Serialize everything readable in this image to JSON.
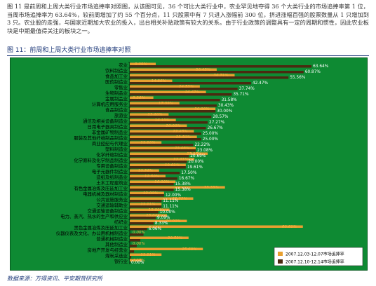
{
  "intro_text": "图 11 是前周和上周大类行业市场追捧率对照图，从该图可见，36 个可比大类行业中，农业罕见地夺得 36 个大类行业的市场追捧率第 1 位，当周市场追捧率为 63.64%，较前周增加了约 55 个百分点，11 只股票中有 7 只进入涨幅前 300 位，挤进涨幅百强的股票数量从 1 只增加到 3 只。农业股的走强，与国家近期加大农业的投入，出台相关补贴政策有较大的关系。由于行业政策的调整具有一定的周期和惯性，因此农业板块是中期最值得关注的板块之一。",
  "figure_caption": "图 11：前周和上周大类行业市场追捧率对照",
  "source_text": "数据来源：万得资讯、平安期货研究所",
  "colors": {
    "background": "#0e8a33",
    "series_prev": "#e8a030",
    "series_curr": "#4a2a10",
    "label_prev": "#f5b342",
    "label_curr": "#ffffff",
    "category_text": "#000000"
  },
  "chart_data": {
    "type": "bar",
    "orientation": "horizontal",
    "xlim": [
      0,
      70
    ],
    "grid": false,
    "legend_position": "bottom-right",
    "categories": [
      "农业",
      "饮料制造业",
      "食品加工业",
      "医药制造业",
      "零售业",
      "生物制品业",
      "金属制品业",
      "计算机应用服务业",
      "食品制造业",
      "旅游业",
      "通信及相关设备制造业",
      "日用电子器具制造业",
      "非金属矿物制品业",
      "服装及其他纤维制品制造业",
      "商业经纪与代理业",
      "塑料制造业",
      "化学纤维制造业",
      "化学原料及化学制品制造业",
      "专用设备制造业",
      "电子元器件制造业",
      "造纸及纸制品业",
      "土木工程建筑业",
      "有色金属冶炼及压延加工业",
      "电器机械及器材制造业",
      "公共设施服务业",
      "交通运输辅助业",
      "交通运输设备制造业",
      "电力、蒸汽、热水的生产和供应业",
      "纺织业",
      "黑色金属冶炼及压延加工业",
      "仪器仪表及文化、办公用机械制造业",
      "普通机械制造业",
      "其他制造业",
      "房地产开发与经营业",
      "煤炭采选业",
      "银行业"
    ],
    "series": [
      {
        "name": "2007.12.03-12.07市场追捧率",
        "values": [
          9.09,
          30.43,
          36.71,
          14.86,
          24.53,
          26.67,
          8.26,
          17.39,
          30.0,
          13.6,
          16.13,
          20.0,
          22.45,
          23.5,
          11.1,
          23.08,
          27.27,
          22.61,
          19.61,
          10.26,
          12.5,
          16.0,
          33.33,
          12.0,
          22.22,
          11.11,
          13.89,
          13.04,
          20.0,
          60.61,
          0.0,
          20.59,
          0.0,
          25.6,
          11.11,
          4.17
        ],
        "labels": [
          "9.09%",
          "30.43%",
          "36.71%",
          "14.86%",
          "24.53%",
          "26.67%",
          "8.26%",
          "17.39%",
          "30.00%",
          "13.60%",
          "16.13%",
          "20.00%",
          "22.45%",
          "23.50%",
          "11.10%",
          "23.08%",
          "27.27%",
          "22.61%",
          "19.61%",
          "10.26%",
          "12.50%",
          "16.00%",
          "33.33%",
          "12.00%",
          "22.22%",
          "11.11%",
          "13.89%",
          "13.04%",
          "20.00%",
          "60.61%",
          "0.00%",
          "20.59%",
          "0.00%",
          "25.60%",
          "11.11%",
          "4.17%"
        ]
      },
      {
        "name": "2007.12.10-12.14市场追捧率",
        "values": [
          63.64,
          60.87,
          55.56,
          42.47,
          37.74,
          35.71,
          31.58,
          30.43,
          30.0,
          28.57,
          27.27,
          26.67,
          25.0,
          25.0,
          22.22,
          23.08,
          20.69,
          20.0,
          19.61,
          17.5,
          16.67,
          15.38,
          15.38,
          12.0,
          11.11,
          11.11,
          10.0,
          9.09,
          8.33,
          6.06,
          4.8,
          3.7,
          2.44,
          1.5,
          0.5,
          0.0
        ],
        "labels": [
          "63.64%",
          "60.87%",
          "55.56%",
          "42.47%",
          "37.74%",
          "35.71%",
          "31.58%",
          "30.43%",
          "30.00%",
          "28.57%",
          "27.27%",
          "26.67%",
          "25.00%",
          "25.00%",
          "22.22%",
          "23.08%",
          "20.69%",
          "20.00%",
          "19.61%",
          "17.50%",
          "16.67%",
          "15.38%",
          "15.38%",
          "12.00%",
          "11.11%",
          "11.11%",
          "10.00%",
          "9.09%",
          "8.33%",
          "6.06%",
          "",
          "",
          "",
          "",
          "",
          "0.00%"
        ]
      }
    ]
  }
}
